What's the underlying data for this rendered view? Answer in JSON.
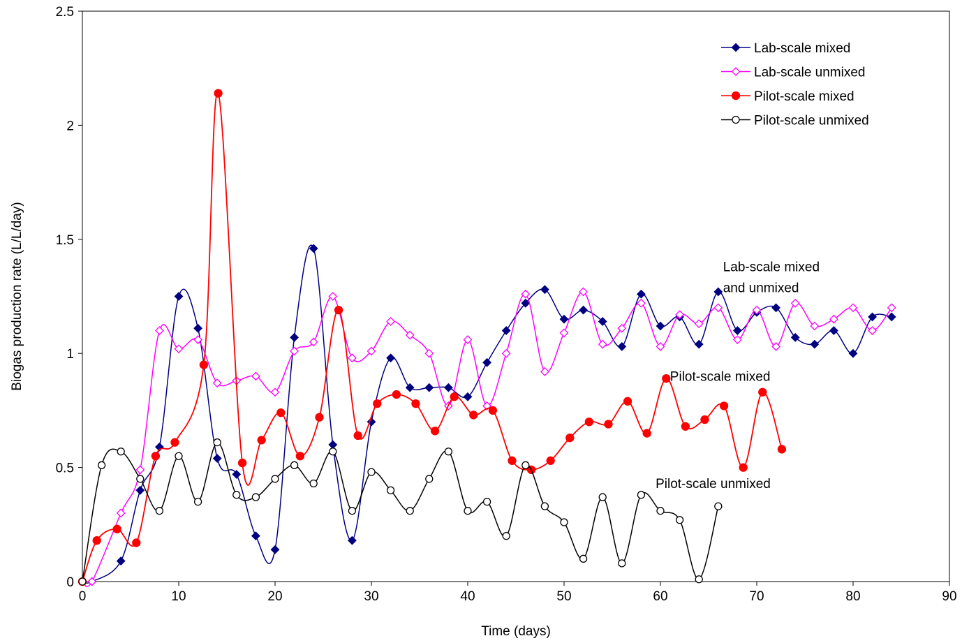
{
  "chart_data": {
    "type": "line",
    "title": "",
    "xlabel": "Time  (days)",
    "ylabel": "Biogas production rate (L/L/day)",
    "xlim": [
      0,
      90
    ],
    "ylim": [
      0,
      2.5
    ],
    "xticks": [
      0,
      10,
      20,
      30,
      40,
      50,
      60,
      70,
      80,
      90
    ],
    "yticks": [
      0,
      0.5,
      1,
      1.5,
      2,
      2.5
    ],
    "xtick_labels": [
      "0",
      "10",
      "20",
      "30",
      "40",
      "50",
      "60",
      "70",
      "80",
      "90"
    ],
    "ytick_labels": [
      "0",
      "0.5",
      "1",
      "1.5",
      "2",
      "2.5"
    ],
    "grid": false,
    "legend_position": "top-right",
    "series": [
      {
        "name": "Lab-scale mixed",
        "color": "#000080",
        "marker": "filled-diamond",
        "x": [
          0,
          1,
          4,
          6,
          8,
          10,
          12,
          14,
          16,
          18,
          20,
          22,
          24,
          26,
          28,
          30,
          32,
          34,
          36,
          38,
          40,
          42,
          44,
          46,
          48,
          50,
          52,
          54,
          56,
          58,
          60,
          62,
          64,
          66,
          68,
          70,
          72,
          74,
          76,
          78,
          80,
          82,
          84
        ],
        "y": [
          0,
          0,
          0.09,
          0.4,
          0.59,
          1.25,
          1.11,
          0.54,
          0.47,
          0.2,
          0.14,
          1.07,
          1.46,
          0.6,
          0.18,
          0.7,
          0.98,
          0.85,
          0.85,
          0.85,
          0.81,
          0.96,
          1.1,
          1.22,
          1.28,
          1.15,
          1.19,
          1.14,
          1.03,
          1.26,
          1.12,
          1.16,
          1.04,
          1.27,
          1.1,
          1.18,
          1.2,
          1.07,
          1.04,
          1.1,
          1.0,
          1.16,
          1.16
        ]
      },
      {
        "name": "Lab-scale unmixed",
        "color": "#FF00FF",
        "marker": "open-diamond",
        "x": [
          0,
          1,
          4,
          6,
          8,
          10,
          12,
          14,
          16,
          18,
          20,
          22,
          24,
          26,
          28,
          30,
          32,
          34,
          36,
          38,
          40,
          42,
          44,
          46,
          48,
          50,
          52,
          54,
          56,
          58,
          60,
          62,
          64,
          66,
          68,
          70,
          72,
          74,
          76,
          78,
          80,
          82,
          84
        ],
        "y": [
          0,
          0,
          0.3,
          0.49,
          1.1,
          1.02,
          1.06,
          0.87,
          0.88,
          0.9,
          0.83,
          1.01,
          1.05,
          1.25,
          0.98,
          1.01,
          1.14,
          1.08,
          1.0,
          0.77,
          1.06,
          0.77,
          1.0,
          1.26,
          0.92,
          1.09,
          1.27,
          1.04,
          1.11,
          1.22,
          1.03,
          1.17,
          1.13,
          1.2,
          1.06,
          1.19,
          1.03,
          1.22,
          1.12,
          1.15,
          1.2,
          1.1,
          1.2
        ]
      },
      {
        "name": "Pilot-scale mixed",
        "color": "#FF0000",
        "marker": "filled-circle",
        "x": [
          0,
          1.5,
          3.6,
          5.6,
          7.6,
          9.6,
          12.6,
          14.1,
          16.6,
          18.6,
          20.6,
          22.6,
          24.6,
          26.6,
          28.6,
          30.6,
          32.6,
          34.6,
          36.6,
          38.6,
          40.6,
          42.6,
          44.6,
          46.6,
          48.6,
          50.6,
          52.6,
          54.6,
          56.6,
          58.6,
          60.6,
          62.6,
          64.6,
          66.6,
          68.6,
          70.6,
          72.6
        ],
        "y": [
          0,
          0.18,
          0.23,
          0.17,
          0.55,
          0.61,
          0.95,
          2.14,
          0.52,
          0.62,
          0.74,
          0.55,
          0.72,
          1.19,
          0.64,
          0.78,
          0.82,
          0.78,
          0.66,
          0.81,
          0.73,
          0.75,
          0.53,
          0.49,
          0.53,
          0.63,
          0.7,
          0.69,
          0.79,
          0.65,
          0.89,
          0.68,
          0.71,
          0.77,
          0.5,
          0.83,
          0.58
        ]
      },
      {
        "name": "Pilot-scale unmixed",
        "color": "#000000",
        "marker": "open-circle",
        "x": [
          0,
          2,
          4,
          6,
          8,
          10,
          12,
          14,
          16,
          18,
          20,
          22,
          24,
          26,
          28,
          30,
          32,
          34,
          36,
          38,
          40,
          42,
          44,
          46,
          48,
          50,
          52,
          54,
          56,
          58,
          60,
          62,
          64,
          66
        ],
        "y": [
          0,
          0.51,
          0.57,
          0.45,
          0.31,
          0.55,
          0.35,
          0.61,
          0.38,
          0.37,
          0.45,
          0.51,
          0.43,
          0.57,
          0.31,
          0.48,
          0.4,
          0.31,
          0.45,
          0.57,
          0.31,
          0.35,
          0.2,
          0.51,
          0.33,
          0.26,
          0.1,
          0.37,
          0.08,
          0.38,
          0.31,
          0.27,
          0.01,
          0.33
        ]
      }
    ],
    "annotations": [
      {
        "lines": [
          "Lab-scale mixed",
          "and unmixed"
        ],
        "x": 66.5,
        "y": 1.36
      },
      {
        "lines": [
          "Pilot-scale mixed"
        ],
        "x": 61,
        "y": 0.88
      },
      {
        "lines": [
          "Pilot-scale unmixed"
        ],
        "x": 59.5,
        "y": 0.41
      }
    ]
  }
}
